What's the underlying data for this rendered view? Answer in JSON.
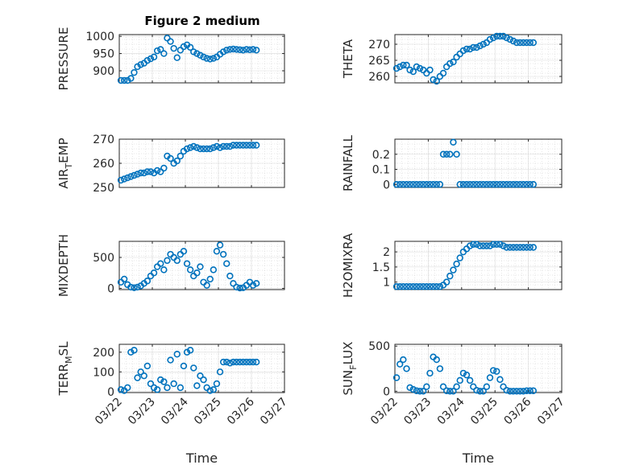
{
  "figure": {
    "title": "Figure 2 medium",
    "x_axis_label": "Time",
    "x_tick_labels": [
      "03/22",
      "03/23",
      "03/24",
      "03/25",
      "03/26",
      "03/27"
    ],
    "marker_color": "#0072BD"
  },
  "chart_data": [
    {
      "type": "scatter",
      "name": "pressure",
      "ylabel": "PRESSURE",
      "ylabel_sub": null,
      "ylim": [
        865,
        1005
      ],
      "yticks": [
        900,
        950,
        1000
      ],
      "xlim": [
        0,
        5
      ],
      "xlabel": "",
      "show_x_tick_labels": false,
      "x": [
        0.05,
        0.15,
        0.25,
        0.35,
        0.45,
        0.55,
        0.65,
        0.75,
        0.85,
        0.95,
        1.05,
        1.15,
        1.25,
        1.35,
        1.45,
        1.55,
        1.65,
        1.75,
        1.85,
        1.95,
        2.05,
        2.15,
        2.25,
        2.35,
        2.45,
        2.55,
        2.65,
        2.75,
        2.85,
        2.95,
        3.05,
        3.15,
        3.25,
        3.35,
        3.45,
        3.55,
        3.65,
        3.75,
        3.85,
        3.95,
        4.05,
        4.15
      ],
      "y": [
        872,
        872,
        872,
        878,
        895,
        912,
        918,
        922,
        930,
        935,
        940,
        958,
        962,
        950,
        995,
        985,
        965,
        938,
        960,
        970,
        975,
        968,
        955,
        950,
        945,
        940,
        936,
        934,
        936,
        940,
        948,
        955,
        960,
        962,
        963,
        962,
        961,
        960,
        962,
        961,
        962,
        960
      ]
    },
    {
      "type": "scatter",
      "name": "theta",
      "ylabel": "THETA",
      "ylabel_sub": null,
      "ylim": [
        258,
        273
      ],
      "yticks": [
        260,
        265,
        270
      ],
      "xlim": [
        0,
        5
      ],
      "xlabel": "",
      "show_x_tick_labels": false,
      "x": [
        0.05,
        0.15,
        0.25,
        0.35,
        0.45,
        0.55,
        0.65,
        0.75,
        0.85,
        0.95,
        1.05,
        1.15,
        1.25,
        1.35,
        1.45,
        1.55,
        1.65,
        1.75,
        1.85,
        1.95,
        2.05,
        2.15,
        2.25,
        2.35,
        2.45,
        2.55,
        2.65,
        2.75,
        2.85,
        2.95,
        3.05,
        3.15,
        3.25,
        3.35,
        3.45,
        3.55,
        3.65,
        3.75,
        3.85,
        3.95,
        4.05,
        4.15
      ],
      "y": [
        262.5,
        263,
        263.5,
        263.5,
        262,
        261.5,
        263,
        262.5,
        262,
        261,
        262,
        259,
        258.5,
        260,
        261,
        263,
        264,
        264.5,
        266,
        267,
        268,
        268.5,
        268.5,
        269,
        269,
        269.5,
        270,
        270.5,
        271.5,
        272,
        272.5,
        272.5,
        272.5,
        272,
        271.5,
        271,
        270.5,
        270.5,
        270.5,
        270.5,
        270.5,
        270.5
      ]
    },
    {
      "type": "scatter",
      "name": "air_temp",
      "ylabel": "AIR",
      "ylabel_sub": "T",
      "ylabel_suffix": "EMP",
      "ylim": [
        250,
        270
      ],
      "yticks": [
        250,
        260,
        270
      ],
      "xlim": [
        0,
        5
      ],
      "xlabel": "",
      "show_x_tick_labels": false,
      "x": [
        0.05,
        0.15,
        0.25,
        0.35,
        0.45,
        0.55,
        0.65,
        0.75,
        0.85,
        0.95,
        1.05,
        1.15,
        1.25,
        1.35,
        1.45,
        1.55,
        1.65,
        1.75,
        1.85,
        1.95,
        2.05,
        2.15,
        2.25,
        2.35,
        2.45,
        2.55,
        2.65,
        2.75,
        2.85,
        2.95,
        3.05,
        3.15,
        3.25,
        3.35,
        3.45,
        3.55,
        3.65,
        3.75,
        3.85,
        3.95,
        4.05,
        4.15
      ],
      "y": [
        253,
        253.5,
        254,
        254.5,
        255,
        255.5,
        256,
        256,
        256.5,
        256.5,
        256,
        257,
        256.5,
        258,
        263,
        262,
        260,
        261,
        263,
        265,
        266,
        266.5,
        267,
        266.5,
        266,
        266,
        266,
        266,
        266.5,
        267,
        266.5,
        267,
        267,
        267,
        267.5,
        267.5,
        267.5,
        267.5,
        267.5,
        267.5,
        267.5,
        267.5
      ]
    },
    {
      "type": "scatter",
      "name": "rainfall",
      "ylabel": "RAINFALL",
      "ylabel_sub": null,
      "ylim": [
        -0.02,
        0.3
      ],
      "yticks": [
        0,
        0.1,
        0.2
      ],
      "xlim": [
        0,
        5
      ],
      "xlabel": "",
      "show_x_tick_labels": false,
      "x": [
        0.05,
        0.15,
        0.25,
        0.35,
        0.45,
        0.55,
        0.65,
        0.75,
        0.85,
        0.95,
        1.05,
        1.15,
        1.25,
        1.35,
        1.45,
        1.55,
        1.65,
        1.75,
        1.85,
        1.95,
        2.05,
        2.15,
        2.25,
        2.35,
        2.45,
        2.55,
        2.65,
        2.75,
        2.85,
        2.95,
        3.05,
        3.15,
        3.25,
        3.35,
        3.45,
        3.55,
        3.65,
        3.75,
        3.85,
        3.95,
        4.05,
        4.15
      ],
      "y": [
        0,
        0,
        0,
        0,
        0,
        0,
        0,
        0,
        0,
        0,
        0,
        0,
        0,
        0,
        0.2,
        0.2,
        0.2,
        0.28,
        0.2,
        0,
        0,
        0,
        0,
        0,
        0,
        0,
        0,
        0,
        0,
        0,
        0,
        0,
        0,
        0,
        0,
        0,
        0,
        0,
        0,
        0,
        0,
        0
      ]
    },
    {
      "type": "scatter",
      "name": "mixdepth",
      "ylabel": "MIXDEPTH",
      "ylabel_sub": null,
      "ylim": [
        -20,
        760
      ],
      "yticks": [
        0,
        500
      ],
      "xlim": [
        0,
        5
      ],
      "xlabel": "",
      "show_x_tick_labels": false,
      "x": [
        0.05,
        0.15,
        0.25,
        0.35,
        0.45,
        0.55,
        0.65,
        0.75,
        0.85,
        0.95,
        1.05,
        1.15,
        1.25,
        1.35,
        1.45,
        1.55,
        1.65,
        1.75,
        1.85,
        1.95,
        2.05,
        2.15,
        2.25,
        2.35,
        2.45,
        2.55,
        2.65,
        2.75,
        2.85,
        2.95,
        3.05,
        3.15,
        3.25,
        3.35,
        3.45,
        3.55,
        3.65,
        3.75,
        3.85,
        3.95,
        4.05,
        4.15
      ],
      "y": [
        100,
        150,
        60,
        20,
        10,
        20,
        40,
        80,
        120,
        200,
        250,
        350,
        400,
        300,
        450,
        550,
        500,
        450,
        550,
        600,
        400,
        300,
        200,
        250,
        350,
        100,
        50,
        150,
        300,
        600,
        700,
        550,
        400,
        200,
        80,
        20,
        5,
        10,
        50,
        100,
        50,
        80
      ]
    },
    {
      "type": "scatter",
      "name": "h2omixra",
      "ylabel": "H2OMIXRA",
      "ylabel_sub": null,
      "ylim": [
        0.75,
        2.35
      ],
      "yticks": [
        1,
        1.5,
        2
      ],
      "xlim": [
        0,
        5
      ],
      "xlabel": "",
      "show_x_tick_labels": false,
      "x": [
        0.05,
        0.15,
        0.25,
        0.35,
        0.45,
        0.55,
        0.65,
        0.75,
        0.85,
        0.95,
        1.05,
        1.15,
        1.25,
        1.35,
        1.45,
        1.55,
        1.65,
        1.75,
        1.85,
        1.95,
        2.05,
        2.15,
        2.25,
        2.35,
        2.45,
        2.55,
        2.65,
        2.75,
        2.85,
        2.95,
        3.05,
        3.15,
        3.25,
        3.35,
        3.45,
        3.55,
        3.65,
        3.75,
        3.85,
        3.95,
        4.05,
        4.15
      ],
      "y": [
        0.85,
        0.85,
        0.85,
        0.85,
        0.85,
        0.85,
        0.85,
        0.85,
        0.85,
        0.85,
        0.85,
        0.85,
        0.85,
        0.85,
        0.9,
        1.0,
        1.2,
        1.4,
        1.6,
        1.8,
        2.0,
        2.1,
        2.2,
        2.25,
        2.25,
        2.2,
        2.2,
        2.2,
        2.2,
        2.25,
        2.25,
        2.25,
        2.2,
        2.15,
        2.15,
        2.15,
        2.15,
        2.15,
        2.15,
        2.15,
        2.15,
        2.15
      ]
    },
    {
      "type": "scatter",
      "name": "terr_msl",
      "ylabel": "TERR",
      "ylabel_sub": "M",
      "ylabel_suffix": "SL",
      "ylim": [
        -5,
        240
      ],
      "yticks": [
        0,
        100,
        200
      ],
      "xlim": [
        0,
        5
      ],
      "xlabel": "Time",
      "show_x_tick_labels": true,
      "x": [
        0.05,
        0.15,
        0.25,
        0.35,
        0.45,
        0.55,
        0.65,
        0.75,
        0.85,
        0.95,
        1.05,
        1.15,
        1.25,
        1.35,
        1.45,
        1.55,
        1.65,
        1.75,
        1.85,
        1.95,
        2.05,
        2.15,
        2.25,
        2.35,
        2.45,
        2.55,
        2.65,
        2.75,
        2.85,
        2.95,
        3.05,
        3.15,
        3.25,
        3.35,
        3.45,
        3.55,
        3.65,
        3.75,
        3.85,
        3.95,
        4.05,
        4.15
      ],
      "y": [
        10,
        5,
        20,
        200,
        210,
        70,
        100,
        80,
        130,
        40,
        20,
        10,
        60,
        50,
        20,
        160,
        40,
        190,
        20,
        130,
        200,
        210,
        120,
        30,
        80,
        60,
        20,
        5,
        10,
        40,
        100,
        150,
        150,
        145,
        150,
        150,
        150,
        150,
        150,
        150,
        150,
        150
      ]
    },
    {
      "type": "scatter",
      "name": "sun_flux",
      "ylabel": "SUN",
      "ylabel_sub": "F",
      "ylabel_suffix": "LUX",
      "ylim": [
        -15,
        520
      ],
      "yticks": [
        0,
        500
      ],
      "xlim": [
        0,
        5
      ],
      "xlabel": "Time",
      "show_x_tick_labels": true,
      "x": [
        0.05,
        0.15,
        0.25,
        0.35,
        0.45,
        0.55,
        0.65,
        0.75,
        0.85,
        0.95,
        1.05,
        1.15,
        1.25,
        1.35,
        1.45,
        1.55,
        1.65,
        1.75,
        1.85,
        1.95,
        2.05,
        2.15,
        2.25,
        2.35,
        2.45,
        2.55,
        2.65,
        2.75,
        2.85,
        2.95,
        3.05,
        3.15,
        3.25,
        3.35,
        3.45,
        3.55,
        3.65,
        3.75,
        3.85,
        3.95,
        4.05,
        4.15
      ],
      "y": [
        150,
        300,
        350,
        250,
        40,
        20,
        5,
        0,
        0,
        50,
        200,
        380,
        350,
        250,
        50,
        5,
        0,
        0,
        50,
        120,
        200,
        180,
        120,
        50,
        10,
        0,
        0,
        50,
        150,
        230,
        220,
        130,
        50,
        10,
        0,
        0,
        0,
        0,
        0,
        5,
        5,
        5
      ]
    }
  ]
}
